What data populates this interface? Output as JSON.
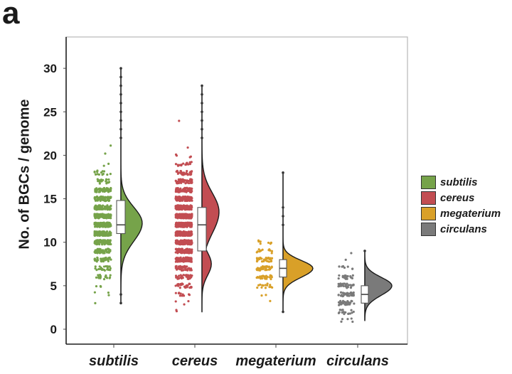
{
  "panel_label": "a",
  "chart_data": {
    "type": "raincloud",
    "title": "",
    "xlabel": "",
    "ylabel": "No. of BGCs / genome",
    "ylim": [
      0,
      32
    ],
    "yticks": [
      0,
      5,
      10,
      15,
      20,
      25,
      30
    ],
    "grid": false,
    "legend_position": "right",
    "categories": [
      "subtilis",
      "cereus",
      "megaterium",
      "circulans"
    ],
    "series": [
      {
        "name": "subtilis",
        "color": "#76a34a",
        "min": 3,
        "q1": 11,
        "median": 12,
        "q3": 14.8,
        "max": 30,
        "points_range": [
          2.8,
          29.7
        ],
        "density_peak": 12.2,
        "outliers": [
          22,
          23,
          24,
          25,
          26,
          27,
          28,
          29,
          30,
          3,
          4
        ]
      },
      {
        "name": "cereus",
        "color": "#c24d52",
        "min": 2,
        "q1": 9,
        "median": 12,
        "q3": 14,
        "max": 28,
        "points_range": [
          2,
          28
        ],
        "density_peak": 13.5,
        "outliers": [
          22,
          23,
          24,
          25,
          26,
          27,
          28
        ]
      },
      {
        "name": "megaterium",
        "color": "#d9a028",
        "min": 2,
        "q1": 6,
        "median": 7,
        "q3": 8,
        "max": 18,
        "points_range": [
          2.2,
          17.8
        ],
        "density_peak": 7,
        "outliers": [
          12,
          13,
          14,
          18,
          2
        ]
      },
      {
        "name": "circulans",
        "color": "#7a7a7a",
        "min": 1,
        "q1": 3,
        "median": 4,
        "q3": 5,
        "max": 9,
        "points_range": [
          0.6,
          9.3
        ],
        "density_peak": 5,
        "outliers": [
          9
        ]
      }
    ]
  },
  "legend": {
    "items": [
      {
        "label": "subtilis",
        "color": "#76a34a"
      },
      {
        "label": "cereus",
        "color": "#c24d52"
      },
      {
        "label": "megaterium",
        "color": "#d9a028"
      },
      {
        "label": "circulans",
        "color": "#7a7a7a"
      }
    ]
  }
}
